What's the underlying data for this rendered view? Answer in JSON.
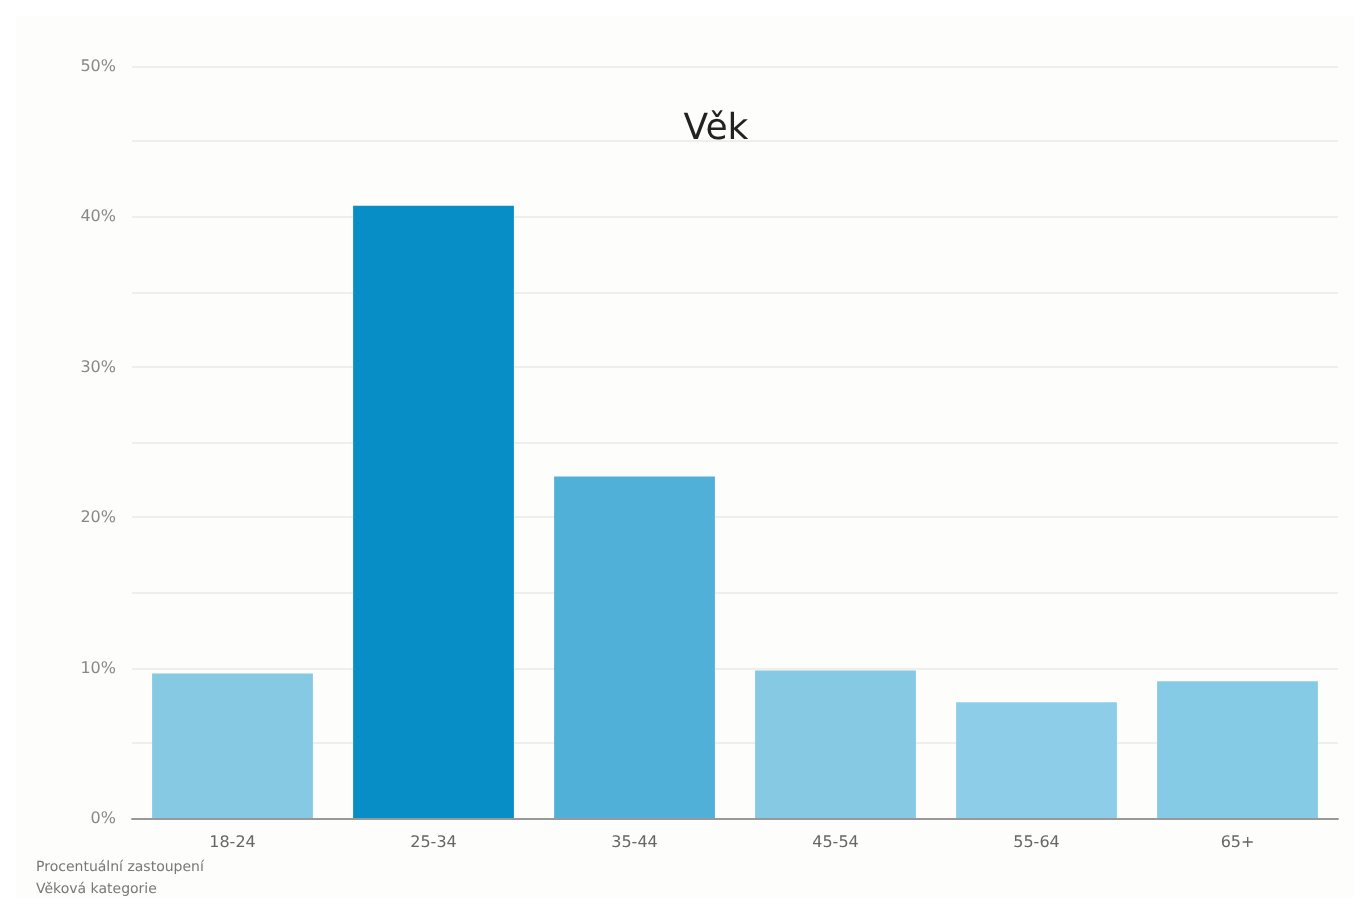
{
  "chart_data": {
    "type": "bar",
    "title": "Věk",
    "xlabel": "Věková kategorie",
    "ylabel": "Procentuální zastoupení",
    "categories": [
      "18-24",
      "25-34",
      "35-44",
      "45-54",
      "55-64",
      "65+"
    ],
    "values": [
      9.6,
      40.7,
      22.7,
      9.8,
      7.7,
      9.1
    ],
    "colors": [
      "#86c9e3",
      "#078ec7",
      "#51b0d8",
      "#86c9e3",
      "#8dcde8",
      "#86cbe5"
    ],
    "ylim": [
      0,
      50
    ],
    "yticks": [
      {
        "value": 0,
        "label": "0%"
      },
      {
        "value": 5,
        "label": null
      },
      {
        "value": 10,
        "label": "10%"
      },
      {
        "value": 15,
        "label": null
      },
      {
        "value": 20,
        "label": "20%"
      },
      {
        "value": 25,
        "label": null
      },
      {
        "value": 30,
        "label": "30%"
      },
      {
        "value": 35,
        "label": null
      },
      {
        "value": 40,
        "label": "40%"
      },
      {
        "value": 45,
        "label": null
      },
      {
        "value": 50,
        "label": "50%"
      }
    ],
    "grid": "y"
  }
}
